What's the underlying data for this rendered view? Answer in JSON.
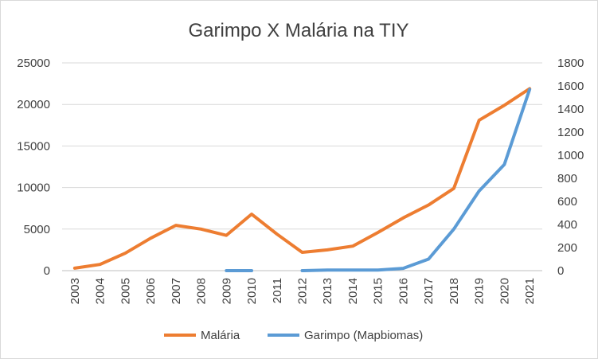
{
  "chart_data": {
    "type": "line",
    "title": "Garimpo X Malária na TIY",
    "categories": [
      "2003",
      "2004",
      "2005",
      "2006",
      "2007",
      "2008",
      "2009",
      "2010",
      "2011",
      "2012",
      "2013",
      "2014",
      "2015",
      "2016",
      "2017",
      "2018",
      "2019",
      "2020",
      "2021"
    ],
    "y_left": {
      "ylim": [
        0,
        25000
      ],
      "ticks": [
        0,
        5000,
        10000,
        15000,
        20000,
        25000
      ]
    },
    "y_right": {
      "ylim": [
        0,
        1800
      ],
      "ticks": [
        0,
        200,
        400,
        600,
        800,
        1000,
        1200,
        1400,
        1600,
        1800
      ]
    },
    "grid": true,
    "legend_position": "bottom",
    "series": [
      {
        "name": "Malária",
        "axis": "left",
        "color": "#ed7d31",
        "values": [
          300,
          750,
          2100,
          3900,
          5450,
          5000,
          4250,
          6800,
          4400,
          2200,
          2500,
          2950,
          4600,
          6350,
          7900,
          9900,
          18100,
          19900,
          21900
        ]
      },
      {
        "name": "Garimpo (Mapbiomas)",
        "axis": "right",
        "color": "#5b9bd5",
        "values": [
          null,
          null,
          null,
          null,
          null,
          null,
          0,
          0,
          null,
          0,
          5,
          5,
          5,
          20,
          100,
          360,
          690,
          920,
          1570
        ]
      }
    ]
  }
}
